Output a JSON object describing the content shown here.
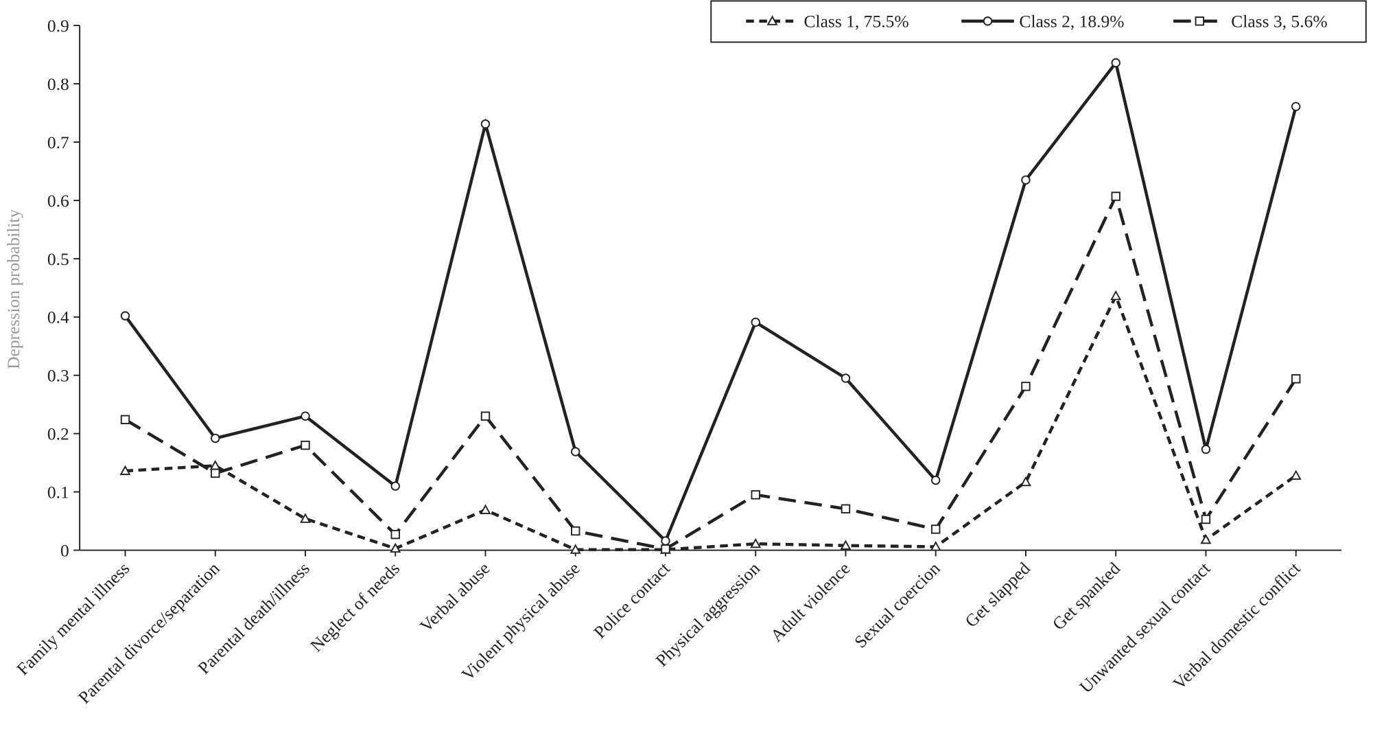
{
  "chart_data": {
    "type": "line",
    "y_label": "Depression probability",
    "categories": [
      "Family mental illness",
      "Parental divorce/separation",
      "Parental death/illness",
      "Neglect of needs",
      "Verbal abuse",
      "Violent physical abuse",
      "Police contact",
      "Physical aggression",
      "Adult violence",
      "Sexual coercion",
      "Get slapped",
      "Get spanked",
      "Unwanted sexual contact",
      "Verbal domestic conflict"
    ],
    "series": [
      {
        "name": "Class 1, 75.5%",
        "color": "#222222",
        "marker": "triangle",
        "dash": "9,6",
        "values": [
          0.136,
          0.145,
          0.054,
          0.003,
          0.069,
          0.001,
          0.001,
          0.011,
          0.008,
          0.006,
          0.117,
          0.436,
          0.018,
          0.128
        ]
      },
      {
        "name": "Class 2, 18.9%",
        "color": "#222222",
        "marker": "circle",
        "dash": "none",
        "values": [
          0.402,
          0.192,
          0.23,
          0.11,
          0.731,
          0.169,
          0.016,
          0.391,
          0.295,
          0.12,
          0.635,
          0.836,
          0.173,
          0.761
        ]
      },
      {
        "name": "Class 3, 5.6%",
        "color": "#222222",
        "marker": "square",
        "dash": "20,10",
        "values": [
          0.224,
          0.132,
          0.18,
          0.027,
          0.23,
          0.033,
          0.002,
          0.095,
          0.071,
          0.036,
          0.281,
          0.607,
          0.053,
          0.294
        ]
      }
    ],
    "ylim": [
      0,
      0.9
    ],
    "yticks": [
      0,
      0.1,
      0.2,
      0.3,
      0.4,
      0.5,
      0.6,
      0.7,
      0.8,
      0.9
    ],
    "grid": false,
    "legend": "top-right"
  }
}
